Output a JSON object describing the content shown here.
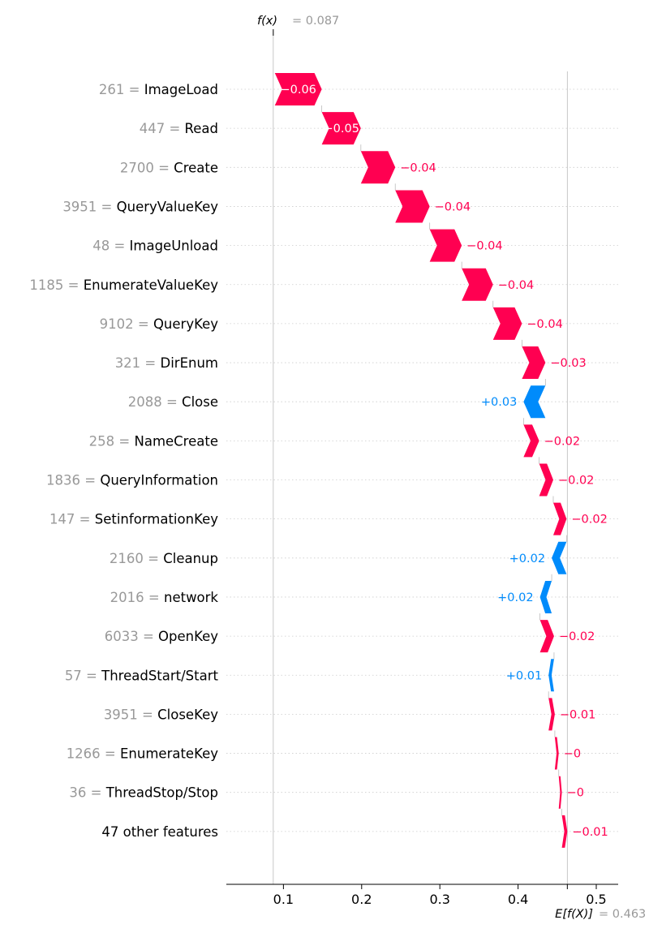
{
  "chart_data": {
    "type": "waterfall",
    "fx_label": "f(x)",
    "fx_value_text": "= 0.087",
    "base_label": "E[f(X)]",
    "base_value_text": "= 0.463",
    "fx": 0.087,
    "base_value": 0.463,
    "xlim": [
      0.027,
      0.528
    ],
    "x_ticks": [
      0.1,
      0.2,
      0.3,
      0.4,
      0.5
    ],
    "x_tick_labels": [
      "0.1",
      "0.2",
      "0.3",
      "0.4",
      "0.5"
    ],
    "colors": {
      "positive": "#ff0051",
      "negative": "#008bfb",
      "value_text": "#999999"
    },
    "rows": [
      {
        "value": "261",
        "feature": "ImageLoad",
        "start": 0.089,
        "end": 0.149,
        "label": "−0.06"
      },
      {
        "value": "447",
        "feature": "Read",
        "start": 0.149,
        "end": 0.199,
        "label": "−0.05"
      },
      {
        "value": "2700",
        "feature": "Create",
        "start": 0.199,
        "end": 0.243,
        "label": "−0.04"
      },
      {
        "value": "3951",
        "feature": "QueryValueKey",
        "start": 0.243,
        "end": 0.287,
        "label": "−0.04"
      },
      {
        "value": "48",
        "feature": "ImageUnload",
        "start": 0.287,
        "end": 0.328,
        "label": "−0.04"
      },
      {
        "value": "1185",
        "feature": "EnumerateValueKey",
        "start": 0.328,
        "end": 0.368,
        "label": "−0.04"
      },
      {
        "value": "9102",
        "feature": "QueryKey",
        "start": 0.368,
        "end": 0.405,
        "label": "−0.04"
      },
      {
        "value": "321",
        "feature": "DirEnum",
        "start": 0.405,
        "end": 0.435,
        "label": "−0.03"
      },
      {
        "value": "2088",
        "feature": "Close",
        "start": 0.435,
        "end": 0.407,
        "label": "+0.03"
      },
      {
        "value": "258",
        "feature": "NameCreate",
        "start": 0.407,
        "end": 0.427,
        "label": "−0.02"
      },
      {
        "value": "1836",
        "feature": "QueryInformation",
        "start": 0.427,
        "end": 0.445,
        "label": "−0.02"
      },
      {
        "value": "147",
        "feature": "SetinformationKey",
        "start": 0.445,
        "end": 0.462,
        "label": "−0.02"
      },
      {
        "value": "2160",
        "feature": "Cleanup",
        "start": 0.462,
        "end": 0.443,
        "label": "+0.02"
      },
      {
        "value": "2016",
        "feature": "network",
        "start": 0.443,
        "end": 0.428,
        "label": "+0.02"
      },
      {
        "value": "6033",
        "feature": "OpenKey",
        "start": 0.428,
        "end": 0.446,
        "label": "−0.02"
      },
      {
        "value": "57",
        "feature": "ThreadStart/Start",
        "start": 0.446,
        "end": 0.439,
        "label": "+0.01"
      },
      {
        "value": "3951",
        "feature": "CloseKey",
        "start": 0.439,
        "end": 0.447,
        "label": "−0.01"
      },
      {
        "value": "1266",
        "feature": "EnumerateKey",
        "start": 0.447,
        "end": 0.452,
        "label": "−0"
      },
      {
        "value": "36",
        "feature": "ThreadStop/Stop",
        "start": 0.452,
        "end": 0.456,
        "label": "−0"
      },
      {
        "value": "",
        "feature": "47 other features",
        "start": 0.456,
        "end": 0.463,
        "label": "−0.01"
      }
    ]
  }
}
